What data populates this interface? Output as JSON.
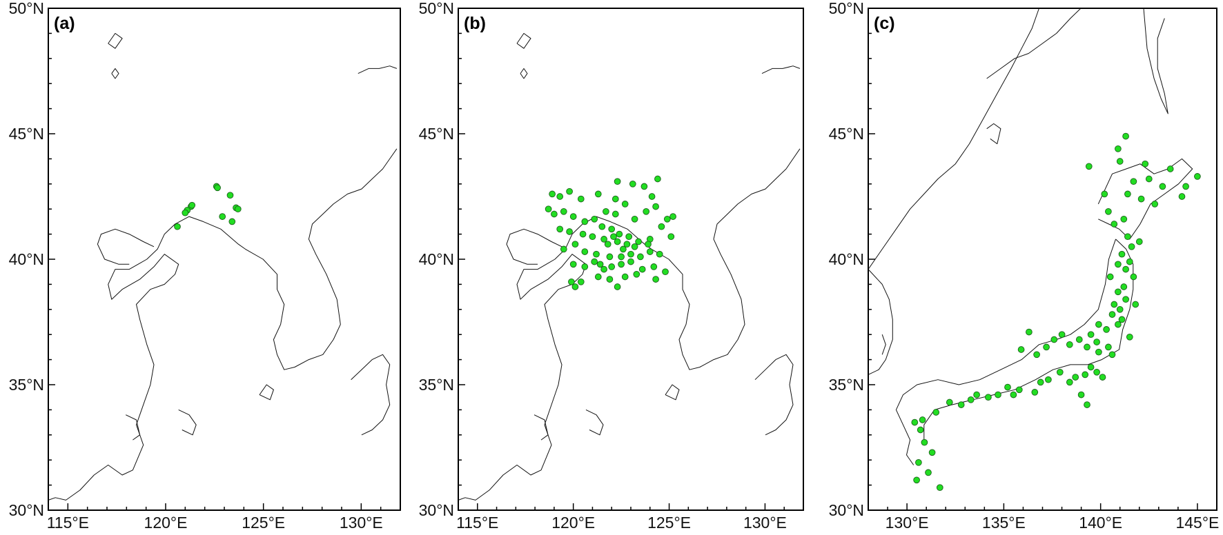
{
  "figure": {
    "marker_color": "#22dd22",
    "marker_edge_color": "#1b5e1b"
  },
  "panels": [
    {
      "label": "(a)",
      "lon_range": [
        114,
        132
      ],
      "lat_range": [
        30,
        50
      ],
      "x_ticks": [
        115,
        120,
        125,
        130
      ],
      "x_tick_labels": [
        "115°E",
        "120°E",
        "125°E",
        "130°E"
      ],
      "y_ticks": [
        30,
        35,
        40,
        45,
        50
      ],
      "y_tick_labels": [
        "30°N",
        "35°N",
        "40°N",
        "45°N",
        "50°N"
      ],
      "points": [
        [
          121.3,
          42.1
        ],
        [
          121.35,
          42.15
        ],
        [
          121.1,
          41.95
        ],
        [
          121.0,
          41.85
        ],
        [
          120.6,
          41.3
        ],
        [
          122.6,
          42.9
        ],
        [
          122.65,
          42.85
        ],
        [
          123.3,
          42.55
        ],
        [
          123.6,
          42.05
        ],
        [
          123.7,
          42.0
        ],
        [
          122.9,
          41.7
        ],
        [
          123.4,
          41.5
        ]
      ]
    },
    {
      "label": "(b)",
      "lon_range": [
        114,
        132
      ],
      "lat_range": [
        30,
        50
      ],
      "x_ticks": [
        115,
        120,
        125,
        130
      ],
      "x_tick_labels": [
        "115°E",
        "120°E",
        "125°E",
        "130°E"
      ],
      "y_ticks": [
        30,
        35,
        40,
        45,
        50
      ],
      "y_tick_labels": [
        "30°N",
        "35°N",
        "40°N",
        "45°N",
        "50°N"
      ],
      "points": [
        [
          118.9,
          42.6
        ],
        [
          119.3,
          42.5
        ],
        [
          119.8,
          42.7
        ],
        [
          120.4,
          42.4
        ],
        [
          121.3,
          42.6
        ],
        [
          122.3,
          43.1
        ],
        [
          123.1,
          43.0
        ],
        [
          123.7,
          42.9
        ],
        [
          124.4,
          43.2
        ],
        [
          124.1,
          42.5
        ],
        [
          118.7,
          42.0
        ],
        [
          119.0,
          41.8
        ],
        [
          119.5,
          41.9
        ],
        [
          120.0,
          41.7
        ],
        [
          120.6,
          41.5
        ],
        [
          121.1,
          41.6
        ],
        [
          121.7,
          41.9
        ],
        [
          122.2,
          41.8
        ],
        [
          122.7,
          42.2
        ],
        [
          123.2,
          41.6
        ],
        [
          123.8,
          41.9
        ],
        [
          124.3,
          42.1
        ],
        [
          124.9,
          41.6
        ],
        [
          125.2,
          41.7
        ],
        [
          119.3,
          41.2
        ],
        [
          119.8,
          41.1
        ],
        [
          120.5,
          41.0
        ],
        [
          121.0,
          40.9
        ],
        [
          121.6,
          40.8
        ],
        [
          122.0,
          41.2
        ],
        [
          122.4,
          41.0
        ],
        [
          122.9,
          40.9
        ],
        [
          123.4,
          40.7
        ],
        [
          124.0,
          40.8
        ],
        [
          124.6,
          41.3
        ],
        [
          125.1,
          40.9
        ],
        [
          119.5,
          40.4
        ],
        [
          120.1,
          40.6
        ],
        [
          120.6,
          40.3
        ],
        [
          121.2,
          40.2
        ],
        [
          121.8,
          40.6
        ],
        [
          122.1,
          40.9
        ],
        [
          122.3,
          40.7
        ],
        [
          122.6,
          40.4
        ],
        [
          123.0,
          40.2
        ],
        [
          123.5,
          40.1
        ],
        [
          124.0,
          40.3
        ],
        [
          124.5,
          40.2
        ],
        [
          120.0,
          39.8
        ],
        [
          120.6,
          39.7
        ],
        [
          121.1,
          39.9
        ],
        [
          121.6,
          39.6
        ],
        [
          122.0,
          39.7
        ],
        [
          122.5,
          39.8
        ],
        [
          123.0,
          39.9
        ],
        [
          123.6,
          39.6
        ],
        [
          124.2,
          39.7
        ],
        [
          121.3,
          39.3
        ],
        [
          121.9,
          39.2
        ],
        [
          122.7,
          39.3
        ],
        [
          123.3,
          39.4
        ],
        [
          120.4,
          39.1
        ],
        [
          120.1,
          38.9
        ],
        [
          119.9,
          39.1
        ],
        [
          124.8,
          39.5
        ],
        [
          122.2,
          42.4
        ],
        [
          121.5,
          41.3
        ],
        [
          122.8,
          40.6
        ],
        [
          123.9,
          40.6
        ],
        [
          121.9,
          40.1
        ],
        [
          121.4,
          39.8
        ],
        [
          124.3,
          39.2
        ],
        [
          122.3,
          38.9
        ],
        [
          123.2,
          40.5
        ],
        [
          122.5,
          40.1
        ]
      ]
    },
    {
      "label": "(c)",
      "lon_range": [
        128,
        146
      ],
      "lat_range": [
        30,
        50
      ],
      "x_ticks": [
        130,
        135,
        140,
        145
      ],
      "x_tick_labels": [
        "130°E",
        "135°E",
        "140°E",
        "145°E"
      ],
      "y_ticks": [
        30,
        35,
        40,
        45,
        50
      ],
      "y_tick_labels": [
        "30°N",
        "35°N",
        "40°N",
        "45°N",
        "50°N"
      ],
      "points": [
        [
          141.3,
          44.9
        ],
        [
          140.9,
          44.4
        ],
        [
          141.0,
          43.9
        ],
        [
          142.3,
          43.8
        ],
        [
          142.5,
          43.2
        ],
        [
          141.7,
          43.1
        ],
        [
          141.4,
          42.6
        ],
        [
          142.1,
          42.4
        ],
        [
          142.8,
          42.2
        ],
        [
          143.2,
          42.9
        ],
        [
          143.6,
          43.6
        ],
        [
          144.4,
          42.9
        ],
        [
          145.0,
          43.3
        ],
        [
          144.2,
          42.5
        ],
        [
          139.4,
          43.7
        ],
        [
          140.2,
          42.6
        ],
        [
          140.4,
          41.9
        ],
        [
          140.7,
          41.4
        ],
        [
          141.2,
          41.6
        ],
        [
          141.4,
          40.9
        ],
        [
          141.6,
          40.5
        ],
        [
          142.0,
          40.7
        ],
        [
          141.1,
          40.2
        ],
        [
          140.9,
          39.8
        ],
        [
          141.5,
          39.9
        ],
        [
          141.3,
          39.6
        ],
        [
          140.5,
          39.3
        ],
        [
          141.7,
          39.3
        ],
        [
          141.2,
          38.9
        ],
        [
          140.9,
          38.7
        ],
        [
          141.3,
          38.4
        ],
        [
          140.7,
          38.2
        ],
        [
          141.0,
          38.0
        ],
        [
          140.6,
          37.8
        ],
        [
          141.1,
          37.6
        ],
        [
          140.9,
          37.4
        ],
        [
          140.3,
          37.2
        ],
        [
          139.9,
          37.4
        ],
        [
          139.5,
          37.0
        ],
        [
          139.8,
          36.7
        ],
        [
          140.4,
          36.5
        ],
        [
          140.6,
          36.2
        ],
        [
          139.9,
          36.3
        ],
        [
          139.3,
          36.5
        ],
        [
          138.9,
          36.8
        ],
        [
          138.4,
          36.6
        ],
        [
          138.0,
          37.0
        ],
        [
          137.6,
          36.8
        ],
        [
          137.2,
          36.5
        ],
        [
          136.7,
          36.2
        ],
        [
          136.3,
          37.1
        ],
        [
          135.9,
          36.4
        ],
        [
          139.5,
          35.7
        ],
        [
          139.8,
          35.5
        ],
        [
          140.1,
          35.3
        ],
        [
          139.2,
          35.4
        ],
        [
          138.7,
          35.3
        ],
        [
          138.4,
          35.1
        ],
        [
          137.9,
          35.5
        ],
        [
          137.3,
          35.2
        ],
        [
          136.9,
          35.1
        ],
        [
          136.6,
          34.7
        ],
        [
          135.8,
          34.8
        ],
        [
          135.5,
          34.6
        ],
        [
          135.2,
          34.9
        ],
        [
          134.7,
          34.6
        ],
        [
          134.2,
          34.5
        ],
        [
          133.6,
          34.6
        ],
        [
          133.3,
          34.4
        ],
        [
          132.8,
          34.2
        ],
        [
          132.2,
          34.3
        ],
        [
          131.5,
          33.9
        ],
        [
          130.8,
          33.6
        ],
        [
          130.4,
          33.5
        ],
        [
          130.7,
          33.2
        ],
        [
          130.9,
          32.7
        ],
        [
          131.3,
          32.3
        ],
        [
          130.6,
          31.9
        ],
        [
          131.1,
          31.5
        ],
        [
          130.5,
          31.2
        ],
        [
          131.7,
          30.9
        ],
        [
          139.3,
          34.2
        ],
        [
          141.8,
          38.2
        ],
        [
          141.5,
          36.9
        ],
        [
          139.0,
          34.6
        ]
      ]
    }
  ]
}
